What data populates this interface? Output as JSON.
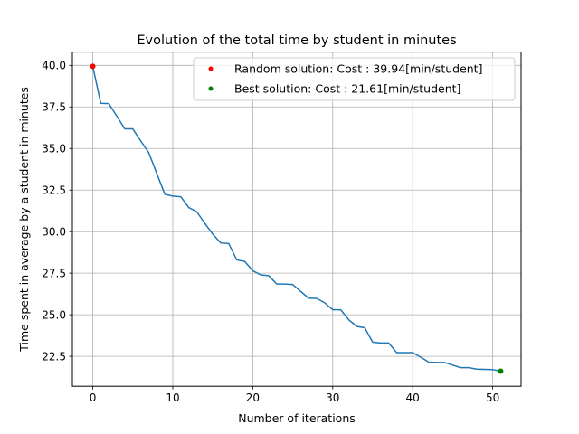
{
  "chart_data": {
    "type": "line",
    "title": "Evolution of the total time by student in minutes",
    "xlabel": "Number of iterations",
    "ylabel": "Time spent in average by a student in minutes",
    "xlim": [
      -2.55,
      53.55
    ],
    "ylim": [
      20.7,
      40.8
    ],
    "xticks": [
      0,
      10,
      20,
      30,
      40,
      50
    ],
    "yticks": [
      22.5,
      25.0,
      27.5,
      30.0,
      32.5,
      35.0,
      37.5,
      40.0
    ],
    "ytick_labels": [
      "22.5",
      "25.0",
      "27.5",
      "30.0",
      "32.5",
      "35.0",
      "37.5",
      "40.0"
    ],
    "grid": true,
    "legend_position": "top-right",
    "series": [
      {
        "color": "#1f77b4",
        "style": "line",
        "x": [
          0,
          1,
          2,
          3,
          4,
          5,
          6,
          7,
          8,
          9,
          10,
          11,
          12,
          13,
          14,
          15,
          16,
          17,
          18,
          19,
          20,
          21,
          22,
          23,
          24,
          25,
          26,
          27,
          28,
          29,
          30,
          31,
          32,
          33,
          34,
          35,
          36,
          37,
          38,
          39,
          40,
          41,
          42,
          43,
          44,
          45,
          46,
          47,
          48,
          49,
          50,
          51
        ],
        "values": [
          39.94,
          37.72,
          37.7,
          36.95,
          36.18,
          36.18,
          35.45,
          34.75,
          33.5,
          32.25,
          32.14,
          32.1,
          31.45,
          31.2,
          30.5,
          29.85,
          29.32,
          29.28,
          28.3,
          28.2,
          27.65,
          27.4,
          27.35,
          26.85,
          26.85,
          26.82,
          26.4,
          26.0,
          25.98,
          25.72,
          25.3,
          25.3,
          24.7,
          24.3,
          24.22,
          23.35,
          23.3,
          23.3,
          22.72,
          22.72,
          22.72,
          22.45,
          22.15,
          22.13,
          22.13,
          21.97,
          21.82,
          21.82,
          21.73,
          21.72,
          21.7,
          21.61
        ]
      },
      {
        "name": "Random solution: Cost : 39.94[min/student]",
        "color": "#ff0000",
        "style": "point",
        "x": [
          0
        ],
        "values": [
          39.94
        ]
      },
      {
        "name": "Best solution: Cost : 21.61[min/student]",
        "color": "#008000",
        "style": "point",
        "x": [
          51
        ],
        "values": [
          21.61
        ]
      }
    ]
  }
}
